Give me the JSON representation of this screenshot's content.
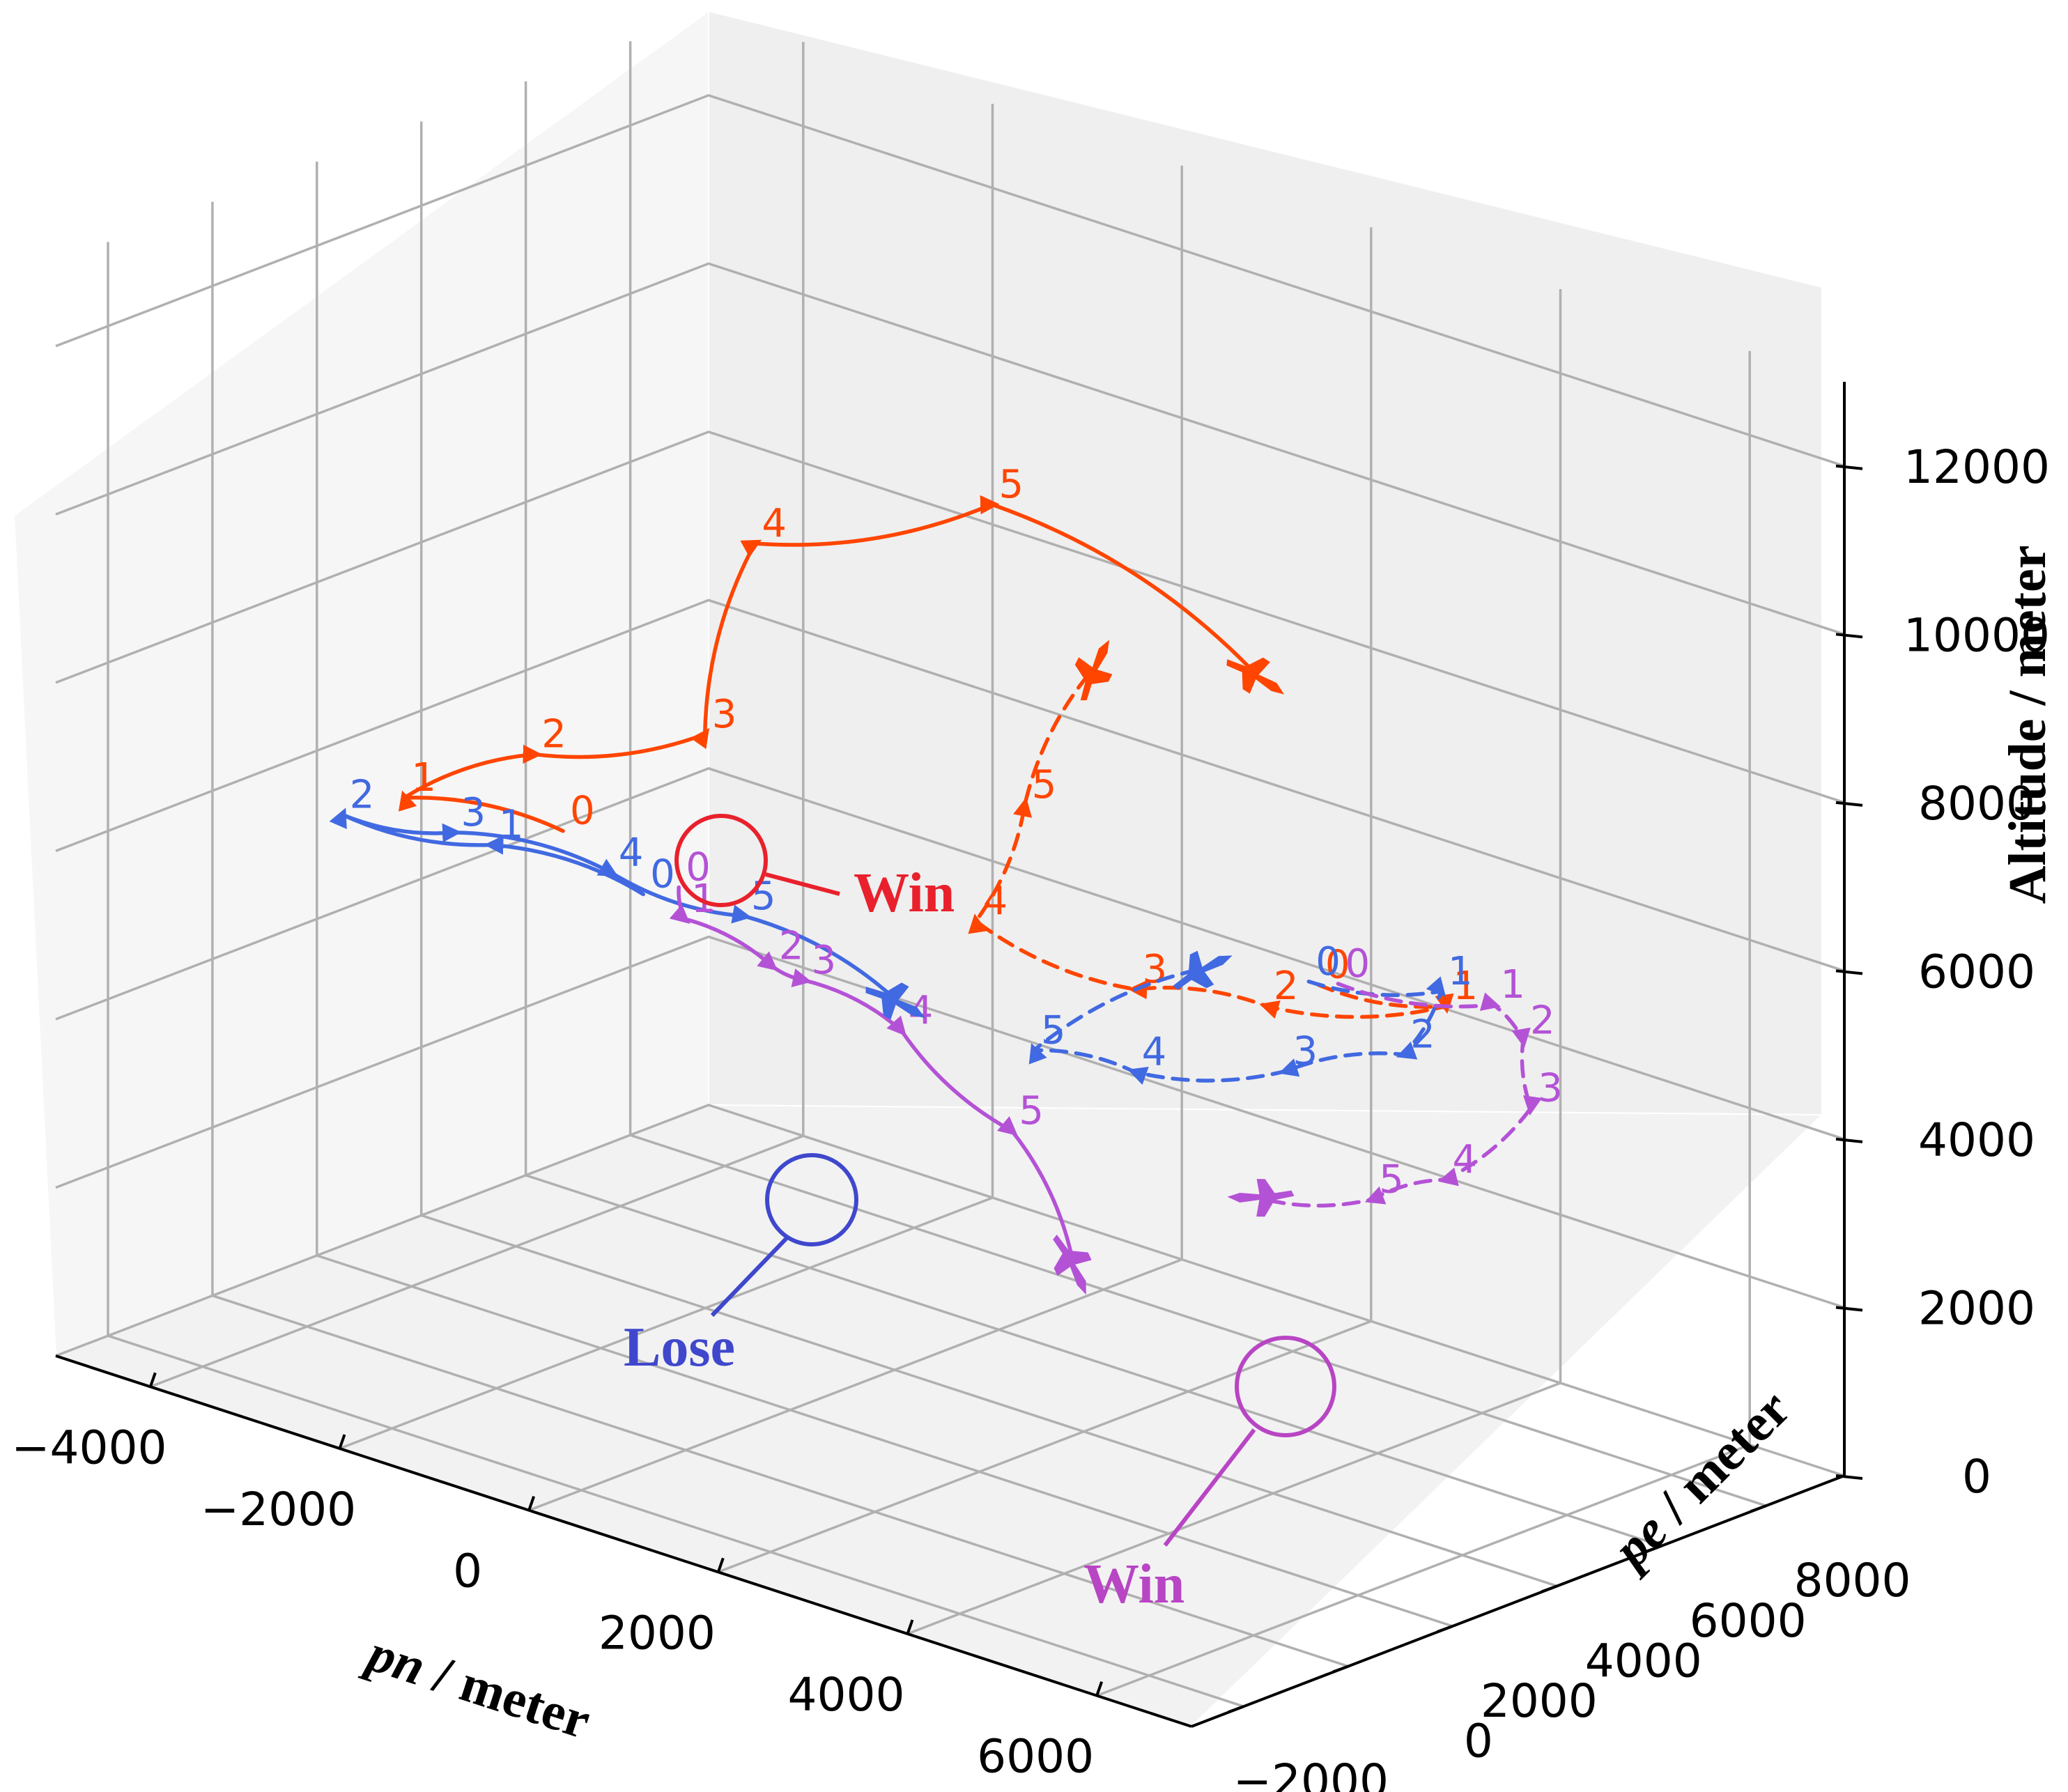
{
  "chart_data": {
    "type": "line",
    "projection": "3d",
    "axes": {
      "x": {
        "label_italic": "pn",
        "label_rest": " / meter",
        "ticks": [
          -4000,
          -2000,
          0,
          2000,
          4000,
          6000
        ],
        "tick_labels": [
          "−4000",
          "−2000",
          "0",
          "2000",
          "4000",
          "6000"
        ],
        "range": [
          -5000,
          7000
        ]
      },
      "y": {
        "label_italic": "pe",
        "label_rest": " / meter",
        "ticks": [
          -2000,
          0,
          2000,
          4000,
          6000,
          8000
        ],
        "tick_labels": [
          "−2000",
          "0",
          "2000",
          "4000",
          "6000",
          "8000"
        ],
        "range": [
          -3000,
          9500
        ]
      },
      "z": {
        "label": "Altitude / meter",
        "ticks": [
          0,
          2000,
          4000,
          6000,
          8000,
          10000,
          12000
        ],
        "tick_labels": [
          "0",
          "2000",
          "4000",
          "6000",
          "8000",
          "10000",
          "12000"
        ],
        "range": [
          0,
          13000
        ]
      }
    },
    "grid": true,
    "colors": {
      "orange": "#ff4500",
      "blue": "#4169e1",
      "purple": "#b452d6",
      "win_red": "#e8212c",
      "lose_blue": "#3f48cc",
      "win_purple": "#b845c4"
    },
    "series": [
      {
        "color_key": "orange",
        "style": "solid",
        "point_labels": [
          "0",
          "1",
          "2",
          "3",
          "4",
          "5"
        ],
        "points": [
          [
            -2400,
            2000,
            6000
          ],
          [
            -3800,
            1500,
            6000
          ],
          [
            -2700,
            2000,
            6800
          ],
          [
            -900,
            2000,
            7700
          ],
          [
            -1200,
            3500,
            9500
          ],
          [
            200,
            5500,
            10000
          ],
          [
            3000,
            5500,
            9000
          ]
        ]
      },
      {
        "color_key": "blue",
        "style": "solid",
        "point_labels": [
          "0",
          "1",
          "2",
          "3",
          "4",
          "5"
        ],
        "points": [
          [
            -1000,
            1000,
            6000
          ],
          [
            -2600,
            1000,
            6000
          ],
          [
            -3900,
            500,
            6000
          ],
          [
            -3000,
            1000,
            6000
          ],
          [
            -1500,
            1300,
            6000
          ],
          [
            -100,
            1300,
            6000
          ],
          [
            1400,
            1500,
            5500
          ]
        ]
      },
      {
        "color_key": "purple",
        "style": "solid",
        "point_labels": [
          "0",
          "1",
          "2",
          "3",
          "4",
          "5"
        ],
        "points": [
          [
            -900,
            1500,
            6000
          ],
          [
            -400,
            700,
            6000
          ],
          [
            800,
            200,
            6000
          ],
          [
            1200,
            100,
            6000
          ],
          [
            2500,
            -400,
            6000
          ],
          [
            4000,
            -1000,
            5500
          ],
          [
            5200,
            -2000,
            4600
          ]
        ]
      },
      {
        "color_key": "orange",
        "style": "dashed",
        "point_labels": [
          "0",
          "1",
          "2",
          "3",
          "4",
          "5"
        ],
        "points": [
          [
            4200,
            4500,
            6000
          ],
          [
            5000,
            5500,
            5800
          ],
          [
            3600,
            4600,
            5500
          ],
          [
            2600,
            3900,
            5500
          ],
          [
            1300,
            3200,
            6000
          ],
          [
            1100,
            4500,
            7000
          ],
          [
            1600,
            4900,
            8700
          ]
        ]
      },
      {
        "color_key": "blue",
        "style": "dashed",
        "point_labels": [
          "0",
          "1",
          "2",
          "3",
          "4",
          "5"
        ],
        "points": [
          [
            4100,
            4500,
            6000
          ],
          [
            5000,
            5400,
            6000
          ],
          [
            5100,
            4500,
            5500
          ],
          [
            4300,
            3700,
            5200
          ],
          [
            3200,
            2800,
            5000
          ],
          [
            2300,
            2500,
            5000
          ],
          [
            3300,
            3900,
            6000
          ]
        ]
      },
      {
        "color_key": "purple",
        "style": "dashed",
        "point_labels": [
          "0",
          "1",
          "2",
          "3",
          "4",
          "5"
        ],
        "points": [
          [
            4300,
            4700,
            6000
          ],
          [
            5500,
            5500,
            6000
          ],
          [
            6200,
            4800,
            6000
          ],
          [
            7000,
            3500,
            5800
          ],
          [
            7200,
            1500,
            5500
          ],
          [
            6700,
            1000,
            5200
          ],
          [
            5800,
            500,
            5000
          ]
        ]
      }
    ],
    "annotations": [
      {
        "text": "Win",
        "color_key": "win_red"
      },
      {
        "text": "Lose",
        "color_key": "lose_blue"
      },
      {
        "text": "Win",
        "color_key": "win_purple"
      }
    ]
  }
}
